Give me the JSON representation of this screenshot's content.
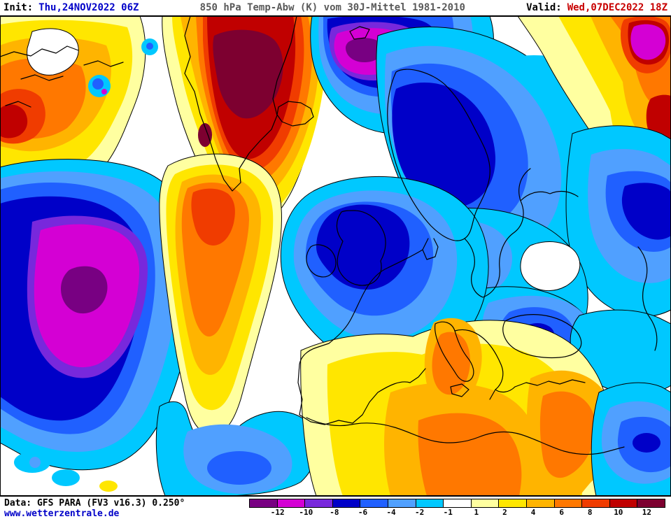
{
  "header": {
    "init_label": "Init:",
    "init_value": "Thu,24NOV2022 06Z",
    "title": "850 hPa Temp-Abw (K) vom 30J-Mittel 1981-2010",
    "valid_label": "Valid:",
    "valid_value": "Wed,07DEC2022 18Z"
  },
  "colors": {
    "init_value": "#0000C8",
    "title": "#5A5A5A",
    "valid_value": "#C80000",
    "website": "#0000C8"
  },
  "map": {
    "palette": [
      "#780082",
      "#D400D4",
      "#7828DC",
      "#0000C8",
      "#2060FF",
      "#50A0FF",
      "#00C8FF",
      "#FFFFFF",
      "#FFFFA0",
      "#FFE600",
      "#FFB400",
      "#FF7800",
      "#F03C00",
      "#C00000",
      "#7D0030"
    ]
  },
  "legend": {
    "tick_labels": [
      "-12",
      "-10",
      "-8",
      "-6",
      "-4",
      "-2",
      "-1",
      "1",
      "2",
      "4",
      "6",
      "8",
      "10",
      "12"
    ]
  },
  "footer": {
    "data_source": "Data: GFS PARA (FV3 v16.3) 0.250°",
    "website": "www.wetterzentrale.de"
  }
}
